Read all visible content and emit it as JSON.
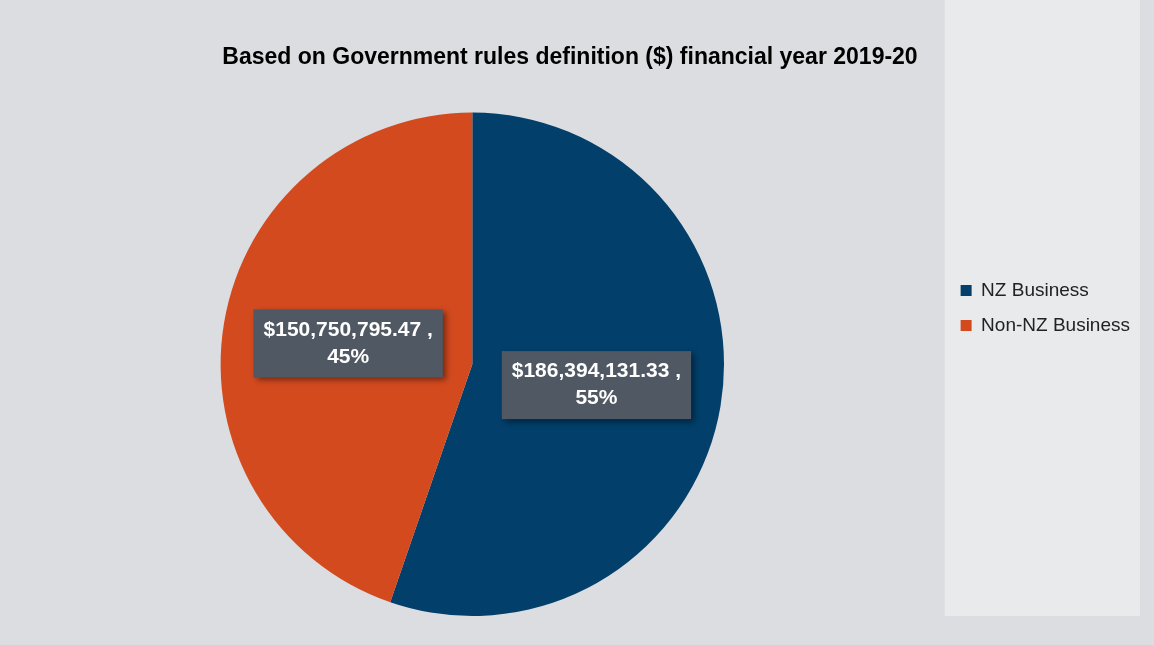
{
  "chart_data": {
    "type": "pie",
    "title": "Based on Government rules definition ($) financial year 2019-20",
    "categories": [
      "NZ Business",
      "Non-NZ Business"
    ],
    "values": [
      186394131.33,
      150750795.47
    ],
    "value_labels": [
      "$186,394,131.33 , 55%",
      "$150,750,795.47 , 45%"
    ],
    "colors": [
      "#023f6b",
      "#d44a1f"
    ],
    "legend": "right",
    "data_labels": true
  }
}
